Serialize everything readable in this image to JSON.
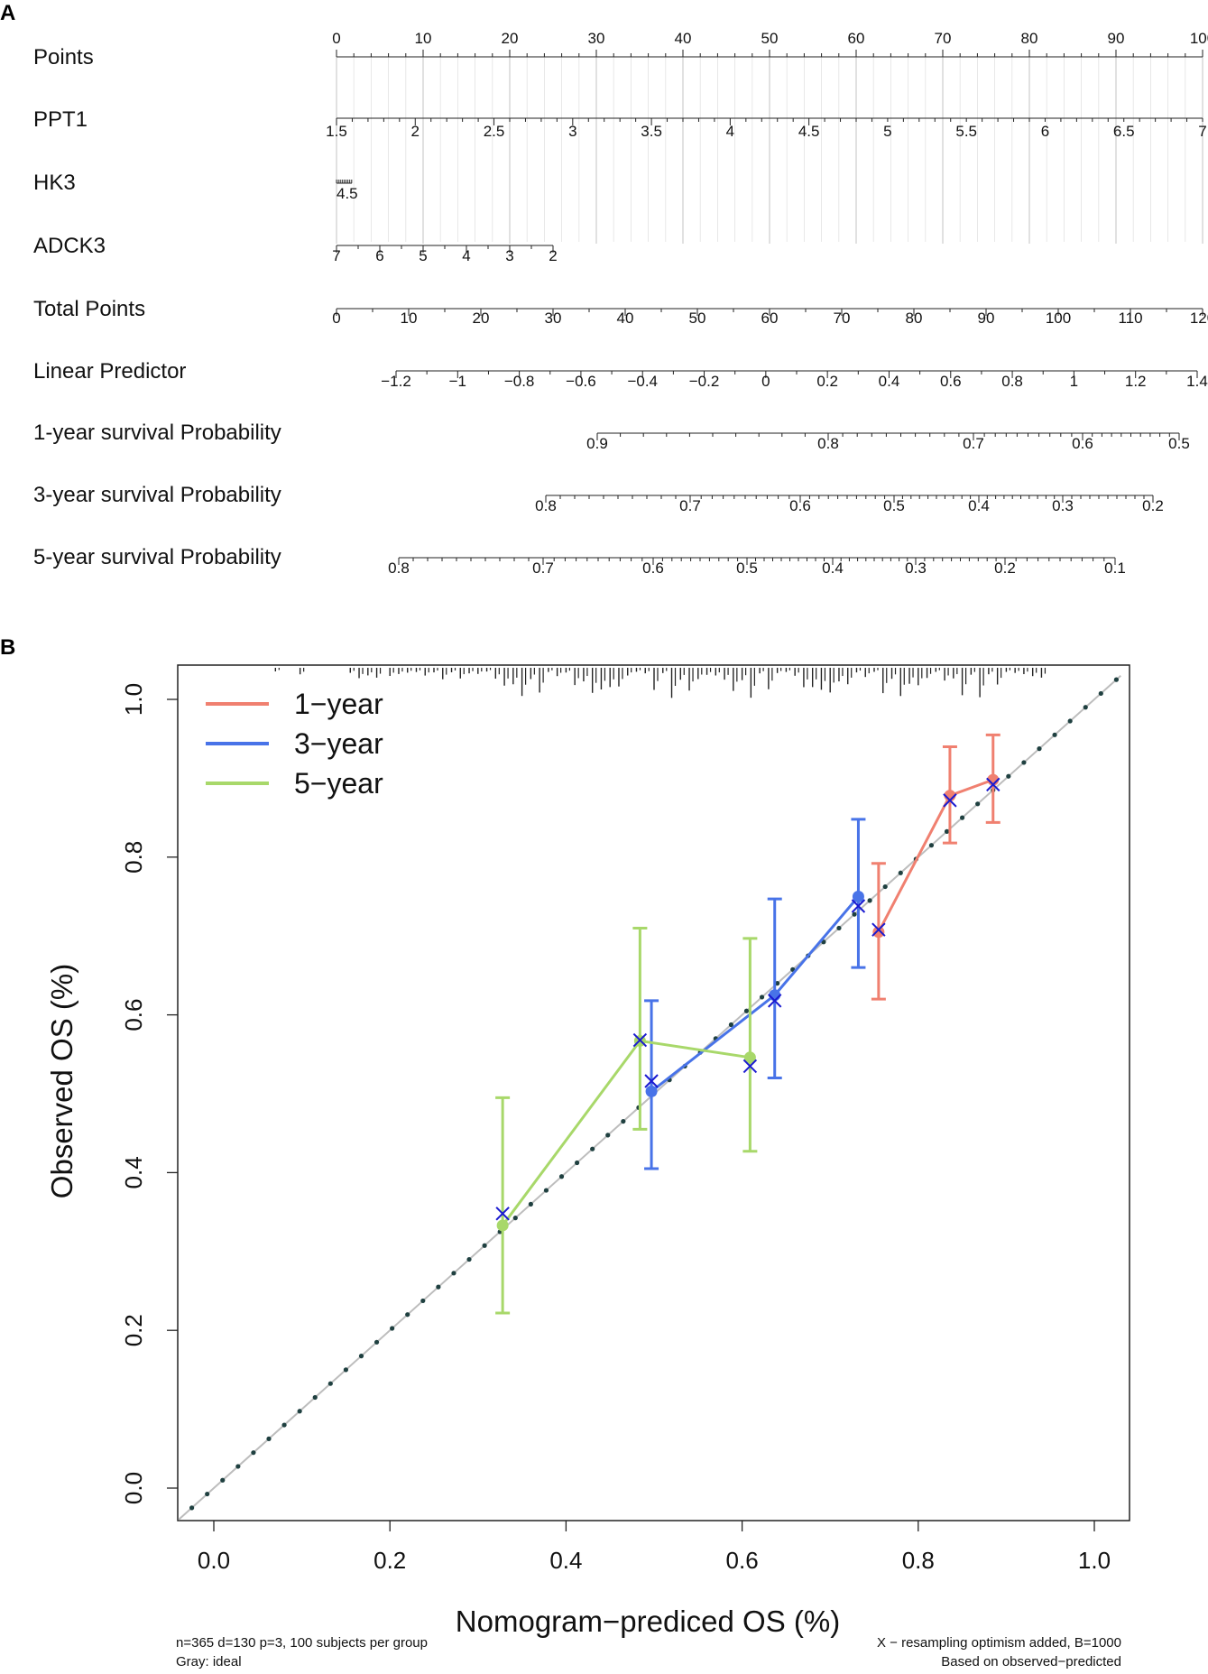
{
  "chart_data": [
    {
      "type": "nomogram",
      "panel_label": "A",
      "rows": [
        {
          "label": "Points",
          "ticks": [
            "0",
            "10",
            "20",
            "30",
            "40",
            "50",
            "60",
            "70",
            "80",
            "90",
            "100"
          ],
          "values": [
            0,
            10,
            20,
            30,
            40,
            50,
            60,
            70,
            80,
            90,
            100
          ],
          "points_range": [
            0,
            100
          ]
        },
        {
          "label": "PPT1",
          "ticks": [
            "1.5",
            "2",
            "2.5",
            "3",
            "3.5",
            "4",
            "4.5",
            "5",
            "5.5",
            "6",
            "6.5",
            "7"
          ],
          "values": [
            1.5,
            2,
            2.5,
            3,
            3.5,
            4,
            4.5,
            5,
            5.5,
            6,
            6.5,
            7
          ],
          "points_range": [
            0,
            100
          ]
        },
        {
          "label": "HK3",
          "ticks": [
            "4.5"
          ],
          "values": [
            4.5
          ],
          "points_range": [
            0,
            1.8
          ]
        },
        {
          "label": "ADCK3",
          "ticks": [
            "7",
            "6",
            "5",
            "4",
            "3",
            "2"
          ],
          "values": [
            7,
            6,
            5,
            4,
            3,
            2
          ],
          "points_range": [
            0,
            25
          ]
        },
        {
          "label": "Total Points",
          "ticks": [
            "0",
            "10",
            "20",
            "30",
            "40",
            "50",
            "60",
            "70",
            "80",
            "90",
            "100",
            "110",
            "120"
          ],
          "values": [
            0,
            10,
            20,
            30,
            40,
            50,
            60,
            70,
            80,
            90,
            100,
            110,
            120
          ],
          "range": [
            0,
            120
          ]
        },
        {
          "label": "Linear Predictor",
          "ticks": [
            "−1.2",
            "−1",
            "−0.8",
            "−0.6",
            "−0.4",
            "−0.2",
            "0",
            "0.2",
            "0.4",
            "0.6",
            "0.8",
            "1",
            "1.2",
            "1.4"
          ],
          "values": [
            -1.2,
            -1,
            -0.8,
            -0.6,
            -0.4,
            -0.2,
            0,
            0.2,
            0.4,
            0.6,
            0.8,
            1,
            1.2,
            1.4
          ]
        },
        {
          "label": "1-year survival Probability",
          "ticks": [
            "0.9",
            "0.8",
            "0.7",
            "0.6",
            "0.5"
          ],
          "values": [
            0.9,
            0.8,
            0.7,
            0.6,
            0.5
          ]
        },
        {
          "label": "3-year survival Probability",
          "ticks": [
            "0.8",
            "0.7",
            "0.6",
            "0.5",
            "0.4",
            "0.3",
            "0.2"
          ],
          "values": [
            0.8,
            0.7,
            0.6,
            0.5,
            0.4,
            0.3,
            0.2
          ]
        },
        {
          "label": "5-year survival Probability",
          "ticks": [
            "0.8",
            "0.7",
            "0.6",
            "0.5",
            "0.4",
            "0.3",
            "0.2",
            "0.1"
          ],
          "values": [
            0.8,
            0.7,
            0.6,
            0.5,
            0.4,
            0.3,
            0.2,
            0.1
          ]
        }
      ]
    },
    {
      "type": "line",
      "panel_label": "B",
      "title": "",
      "xlabel": "Nomogram−prediced OS (%)",
      "ylabel": "Observed OS (%)",
      "xlim": [
        -0.04,
        1.04
      ],
      "ylim": [
        -0.04,
        1.07
      ],
      "xticks": [
        "0.0",
        "0.2",
        "0.4",
        "0.6",
        "0.8",
        "1.0"
      ],
      "xtick_values": [
        0,
        0.2,
        0.4,
        0.6,
        0.8,
        1.0
      ],
      "yticks": [
        "0.0",
        "0.2",
        "0.4",
        "0.6",
        "0.8",
        "1.0"
      ],
      "ytick_values": [
        0,
        0.2,
        0.4,
        0.6,
        0.8,
        1.0
      ],
      "legend_position": "top-left",
      "series": [
        {
          "name": "1−year",
          "color": "#F08070",
          "x": [
            0.755,
            0.836,
            0.885
          ],
          "y": [
            0.705,
            0.878,
            0.898
          ],
          "lower": [
            0.62,
            0.818,
            0.844
          ],
          "upper": [
            0.792,
            0.94,
            0.955
          ],
          "corrected_y": [
            0.708,
            0.872,
            0.892
          ]
        },
        {
          "name": "3−year",
          "color": "#4873E8",
          "x": [
            0.497,
            0.637,
            0.732
          ],
          "y": [
            0.503,
            0.625,
            0.75
          ],
          "lower": [
            0.405,
            0.52,
            0.66
          ],
          "upper": [
            0.618,
            0.747,
            0.848
          ],
          "corrected_y": [
            0.516,
            0.618,
            0.738
          ]
        },
        {
          "name": "5−year",
          "color": "#A8D86A",
          "x": [
            0.328,
            0.484,
            0.609
          ],
          "y": [
            0.333,
            0.567,
            0.546
          ],
          "lower": [
            0.222,
            0.455,
            0.427
          ],
          "upper": [
            0.495,
            0.71,
            0.697
          ],
          "corrected_y": [
            0.348,
            0.568,
            0.535
          ]
        }
      ],
      "ideal_line": {
        "name": "Gray: ideal",
        "from": [
          -0.04,
          -0.04
        ],
        "to": [
          1.04,
          1.04
        ]
      },
      "rug_positions": [
        0.07,
        0.098,
        0.155,
        0.165,
        0.175,
        0.185,
        0.2,
        0.21,
        0.22,
        0.23,
        0.24,
        0.25,
        0.26,
        0.27,
        0.28,
        0.29,
        0.3,
        0.31,
        0.32,
        0.33,
        0.34,
        0.35,
        0.36,
        0.37,
        0.38,
        0.39,
        0.4,
        0.41,
        0.42,
        0.43,
        0.44,
        0.45,
        0.46,
        0.47,
        0.48,
        0.49,
        0.5,
        0.51,
        0.52,
        0.53,
        0.54,
        0.55,
        0.56,
        0.57,
        0.58,
        0.59,
        0.6,
        0.61,
        0.62,
        0.63,
        0.64,
        0.65,
        0.66,
        0.67,
        0.68,
        0.69,
        0.7,
        0.71,
        0.72,
        0.73,
        0.74,
        0.75,
        0.76,
        0.77,
        0.78,
        0.79,
        0.8,
        0.81,
        0.82,
        0.83,
        0.84,
        0.85,
        0.86,
        0.87,
        0.88,
        0.89,
        0.9,
        0.91,
        0.92,
        0.93,
        0.94
      ],
      "footnote_left": [
        "n=365 d=130 p=3, 100 subjects per group",
        "Gray: ideal"
      ],
      "footnote_right": [
        "X − resampling optimism added, B=1000",
        "Based on observed−predicted"
      ]
    }
  ]
}
